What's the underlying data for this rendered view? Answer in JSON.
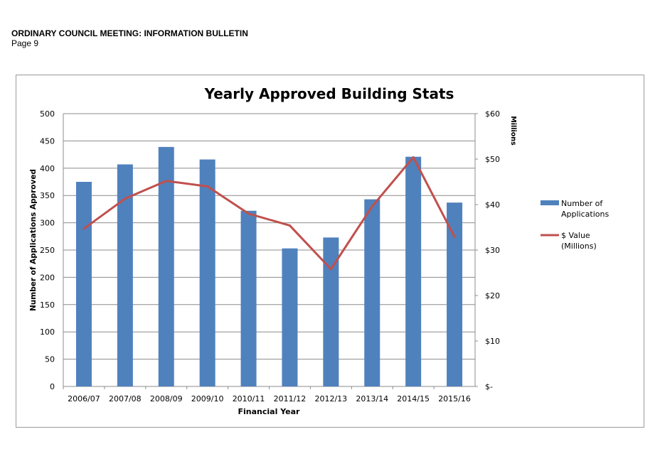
{
  "header": {
    "title": "ORDINARY COUNCIL MEETING: INFORMATION BULLETIN",
    "page": "Page 9"
  },
  "chart_data": {
    "type": "bar+line",
    "title": "Yearly Approved Building Stats",
    "xlabel": "Financial Year",
    "ylabel": "Number of Applications Approved",
    "y2label": "Millions",
    "categories": [
      "2006/07",
      "2007/08",
      "2008/09",
      "2009/10",
      "2010/11",
      "2011/12",
      "2012/13",
      "2013/14",
      "2014/15",
      "2015/16"
    ],
    "ylim": [
      0,
      500
    ],
    "y_ticks": [
      0,
      50,
      100,
      150,
      200,
      250,
      300,
      350,
      400,
      450,
      500
    ],
    "y2lim": [
      0,
      60
    ],
    "y2_ticks": [
      0,
      10,
      20,
      30,
      40,
      50,
      60
    ],
    "y2_tick_labels": [
      "$-",
      "$10",
      "$20",
      "$30",
      "$40",
      "$50",
      "$60"
    ],
    "grid": true,
    "legend": "right",
    "series": [
      {
        "name": "Number of Applications",
        "type": "bar",
        "axis": "left",
        "color": "#4f81bd",
        "values": [
          375,
          407,
          439,
          416,
          322,
          253,
          273,
          343,
          421,
          337
        ]
      },
      {
        "name": "$ Value (Millions)",
        "type": "line",
        "axis": "right",
        "color": "#c0504d",
        "values": [
          34.7,
          41.3,
          45.2,
          44.0,
          38.0,
          35.4,
          25.8,
          39.6,
          50.4,
          32.9
        ]
      }
    ],
    "legend_labels": [
      [
        "Number of",
        "Applications"
      ],
      [
        "$ Value",
        "(Millions)"
      ]
    ]
  }
}
